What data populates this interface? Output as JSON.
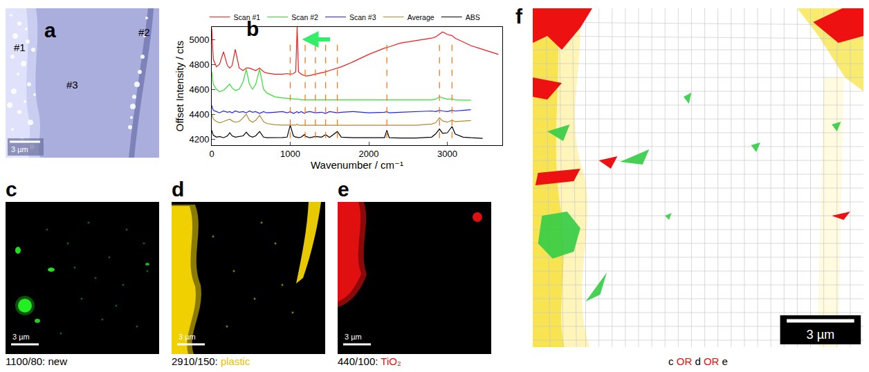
{
  "chart_data": {
    "type": "line",
    "x_label": "Wavenumber / cm⁻¹",
    "y_label": "Offset Intensity / cts",
    "x": [
      0,
      20,
      60,
      100,
      150,
      200,
      230,
      260,
      300,
      350,
      400,
      440,
      480,
      520,
      560,
      610,
      660,
      700,
      800,
      900,
      960,
      1000,
      1040,
      1070,
      1088,
      1105,
      1140,
      1180,
      1200,
      1250,
      1320,
      1400,
      1450,
      1500,
      1600,
      1650,
      1800,
      2000,
      2200,
      2230,
      2260,
      2400,
      2600,
      2800,
      2850,
      2900,
      2940,
      3000,
      3060,
      3100,
      3200,
      3300,
      3400,
      3450,
      3500,
      3650
    ],
    "series": [
      {
        "name": "Scan #1",
        "color": "#ee1c1c",
        "values": [
          5090,
          4840,
          4780,
          4800,
          4900,
          4790,
          4770,
          4790,
          4920,
          4770,
          4750,
          4770,
          4770,
          4760,
          4750,
          4770,
          4740,
          4730,
          4720,
          4720,
          4725,
          4720,
          4725,
          4740,
          5100,
          4740,
          4720,
          4710,
          4705,
          4710,
          4720,
          4730,
          4740,
          4750,
          4770,
          4780,
          4820,
          4880,
          4930,
          4935,
          4940,
          4970,
          4990,
          5010,
          5020,
          5040,
          5060,
          5040,
          5030,
          5010,
          4980,
          4950,
          4930,
          4920,
          4910,
          4880
        ]
      },
      {
        "name": "Scan #2",
        "color": "#33dd33",
        "values": [
          4740,
          4640,
          4600,
          4580,
          4590,
          4620,
          4640,
          4610,
          4590,
          4600,
          4660,
          4760,
          4640,
          4600,
          4640,
          4760,
          4600,
          4570,
          4540,
          4530,
          4525,
          4525,
          4520,
          4520,
          4520,
          4520,
          4515,
          4515,
          4515,
          4515,
          4512,
          4512,
          4512,
          4512,
          4512,
          4512,
          4512,
          4512,
          4512,
          4512,
          4512,
          4512,
          4512,
          4515,
          4520,
          4540,
          4530,
          4520,
          4522,
          4515,
          4512,
          4512,
          null,
          null,
          null,
          null
        ]
      },
      {
        "name": "Scan #3",
        "color": "#2222ee",
        "values": [
          4470,
          4430,
          4420,
          4410,
          4425,
          4415,
          4420,
          4410,
          4425,
          4415,
          4420,
          4410,
          4425,
          4415,
          4420,
          4405,
          4420,
          4410,
          4415,
          4420,
          4410,
          4420,
          4405,
          4415,
          4420,
          4410,
          4420,
          4405,
          4415,
          4420,
          4410,
          4415,
          4405,
          4420,
          4410,
          4415,
          4420,
          4410,
          4415,
          4420,
          4410,
          4415,
          4420,
          4425,
          4420,
          4430,
          4425,
          4420,
          4430,
          4425,
          4430,
          4435,
          null,
          null,
          null,
          null
        ]
      },
      {
        "name": "Average",
        "color": "#b08a2e",
        "values": [
          4400,
          4360,
          4340,
          4330,
          4340,
          4350,
          4360,
          4345,
          4335,
          4340,
          4370,
          4400,
          4350,
          4335,
          4350,
          4390,
          4340,
          4325,
          4315,
          4312,
          4312,
          4312,
          4312,
          4312,
          4318,
          4312,
          4310,
          4310,
          4310,
          4310,
          4310,
          4310,
          4310,
          4310,
          4310,
          4310,
          4310,
          4310,
          4310,
          4310,
          4310,
          4310,
          4310,
          4320,
          4330,
          4370,
          4345,
          4335,
          4350,
          4340,
          4345,
          4348,
          null,
          null,
          null,
          null
        ]
      },
      {
        "name": "ABS",
        "color": "#000000",
        "values": [
          4270,
          4230,
          4215,
          4220,
          4210,
          4225,
          4250,
          4225,
          4215,
          4220,
          4225,
          4255,
          4225,
          4215,
          4225,
          4260,
          4215,
          4210,
          4210,
          4212,
          4215,
          4310,
          4225,
          4215,
          4215,
          4210,
          4215,
          4235,
          4220,
          4210,
          4220,
          4215,
          4235,
          4212,
          4260,
          4215,
          4210,
          4210,
          4210,
          4270,
          4210,
          4208,
          4208,
          4215,
          4240,
          4280,
          4245,
          4250,
          4300,
          4240,
          4215,
          4210,
          4208,
          4205,
          null,
          null
        ]
      }
    ],
    "xlim": [
      0,
      3700
    ],
    "xticks": [
      0,
      1000,
      2000,
      3000
    ],
    "ylim": [
      4150,
      5100
    ],
    "yticks": [
      4200,
      4400,
      4600,
      4800,
      5000
    ],
    "grid": false,
    "legend": "top",
    "vlines": {
      "x": [
        1000,
        1190,
        1320,
        1450,
        1600,
        2230,
        2900,
        3060
      ],
      "color": "#f07a20",
      "line_style": "dash"
    },
    "arrow": {
      "x": 1150,
      "y": 5000,
      "color": "#33ee66"
    }
  },
  "panels": {
    "a": {
      "letter": "a",
      "labels": [
        "#1",
        "#2",
        "#3"
      ],
      "scale_bar": "3 µm"
    },
    "b": {
      "letter": "b"
    },
    "c": {
      "letter": "c",
      "caption": [
        {
          "text": "1100/80: new",
          "color": "#000000"
        }
      ],
      "scale_bar": "3 µm"
    },
    "d": {
      "letter": "d",
      "caption": [
        {
          "text": "2910/150: ",
          "color": "#000000"
        },
        {
          "text": "plastic",
          "color": "#e8c000"
        }
      ],
      "scale_bar": "3 µm"
    },
    "e": {
      "letter": "e",
      "caption": [
        {
          "text": "440/100: ",
          "color": "#000000"
        },
        {
          "text": "TiO₂",
          "color": "#e01010"
        }
      ],
      "scale_bar": "3 µm"
    },
    "f": {
      "letter": "f",
      "caption": [
        {
          "text": "c ",
          "color": "#000000"
        },
        {
          "text": "OR",
          "color": "#e01010"
        },
        {
          "text": " d ",
          "color": "#000000"
        },
        {
          "text": "OR",
          "color": "#e01010"
        },
        {
          "text": " e",
          "color": "#000000"
        }
      ],
      "scale_bar": "3 µm"
    }
  }
}
